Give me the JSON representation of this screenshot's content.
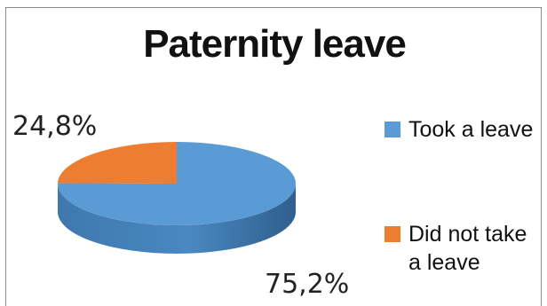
{
  "chart_data": {
    "type": "pie",
    "title": "Paternity leave",
    "categories": [
      "Took a leave",
      "Did not take a leave"
    ],
    "values": [
      75.2,
      24.8
    ],
    "data_labels": [
      "75,2%",
      "24,8%"
    ],
    "colors": [
      "#5b9bd5",
      "#ed7d31"
    ],
    "legend_placement": "right",
    "style": "3d"
  },
  "legend": {
    "took_a_leave": "Took a leave",
    "did_not_take_line1": "Did not take",
    "did_not_take_line2": "a leave"
  }
}
